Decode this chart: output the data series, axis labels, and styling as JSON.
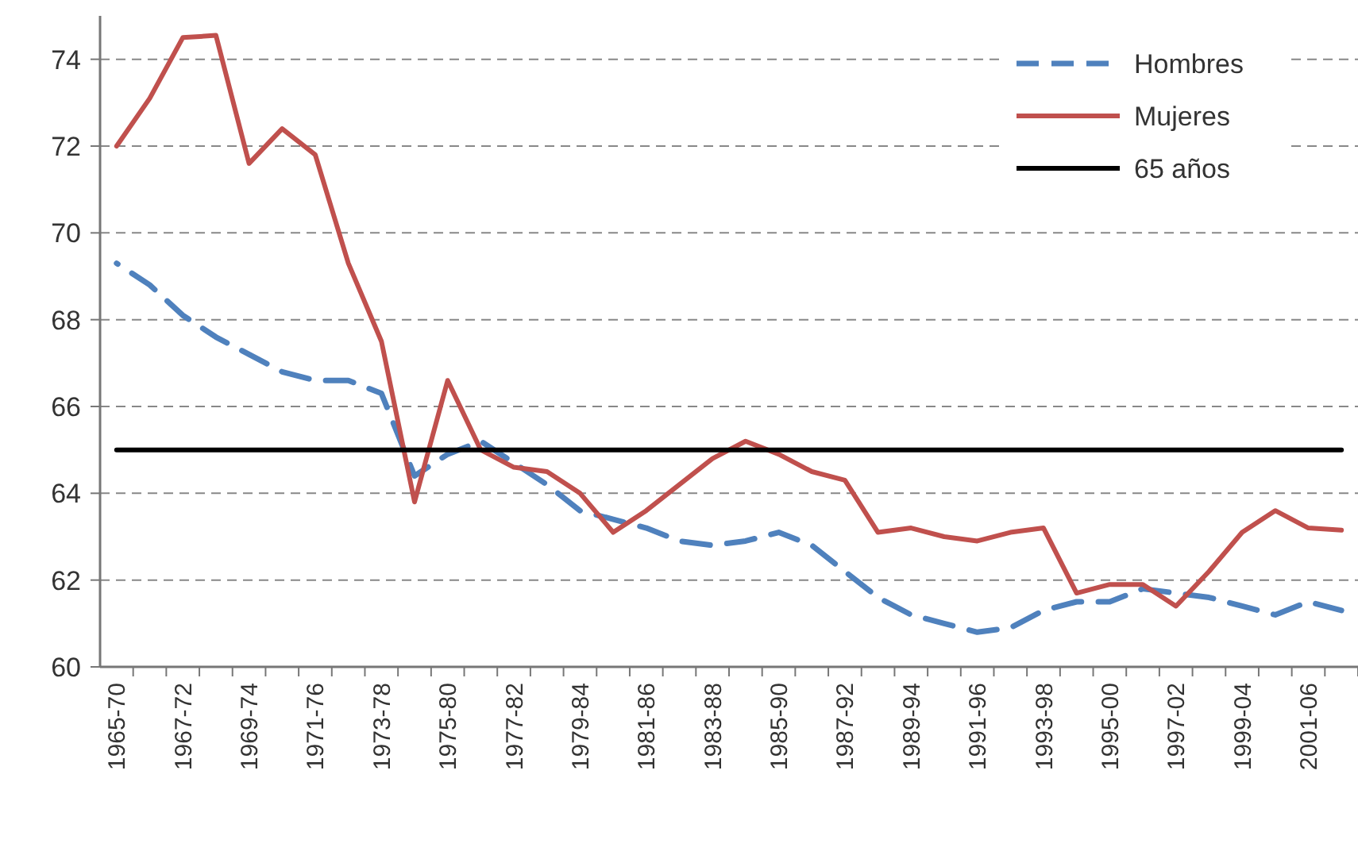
{
  "chart_data": {
    "type": "line",
    "categories": [
      "1965-70",
      null,
      "1967-72",
      null,
      "1969-74",
      null,
      "1971-76",
      null,
      "1973-78",
      null,
      "1975-80",
      null,
      "1977-82",
      null,
      "1979-84",
      null,
      "1981-86",
      null,
      "1983-88",
      null,
      "1985-90",
      null,
      "1987-92",
      null,
      "1989-94",
      null,
      "1991-96",
      null,
      "1993-98",
      null,
      "1995-00",
      null,
      "1997-02",
      null,
      "1999-04",
      null,
      "2001-06",
      null
    ],
    "series": [
      {
        "name": "Hombres",
        "color": "#4f81bd",
        "line_style": "dashed",
        "values": [
          69.3,
          68.8,
          68.1,
          67.6,
          67.2,
          66.8,
          66.6,
          66.6,
          66.3,
          64.4,
          64.9,
          65.2,
          64.7,
          64.2,
          63.6,
          63.4,
          63.2,
          62.9,
          62.8,
          62.9,
          63.1,
          62.8,
          62.2,
          61.6,
          61.2,
          61.0,
          60.8,
          60.9,
          61.3,
          61.5,
          61.5,
          61.8,
          61.7,
          61.6,
          61.4,
          61.2,
          61.5,
          61.3
        ]
      },
      {
        "name": "Mujeres",
        "color": "#c0504d",
        "line_style": "solid",
        "values": [
          72.0,
          73.1,
          74.5,
          74.55,
          71.6,
          72.4,
          71.8,
          69.3,
          67.5,
          63.8,
          66.6,
          65.0,
          64.6,
          64.5,
          64.0,
          63.1,
          63.6,
          64.2,
          64.8,
          65.2,
          64.9,
          64.5,
          64.3,
          63.1,
          63.2,
          63.0,
          62.9,
          63.1,
          63.2,
          61.7,
          61.9,
          61.9,
          61.4,
          62.2,
          63.1,
          63.6,
          63.2,
          63.15
        ]
      },
      {
        "name": "65 años",
        "color": "#000000",
        "line_style": "solid",
        "values": [
          65,
          65,
          65,
          65,
          65,
          65,
          65,
          65,
          65,
          65,
          65,
          65,
          65,
          65,
          65,
          65,
          65,
          65,
          65,
          65,
          65,
          65,
          65,
          65,
          65,
          65,
          65,
          65,
          65,
          65,
          65,
          65,
          65,
          65,
          65,
          65,
          65,
          65
        ]
      }
    ],
    "ylim": [
      60,
      75
    ],
    "yticks": [
      60,
      62,
      64,
      66,
      68,
      70,
      72,
      74
    ],
    "grid": "y",
    "legend": "top right"
  }
}
